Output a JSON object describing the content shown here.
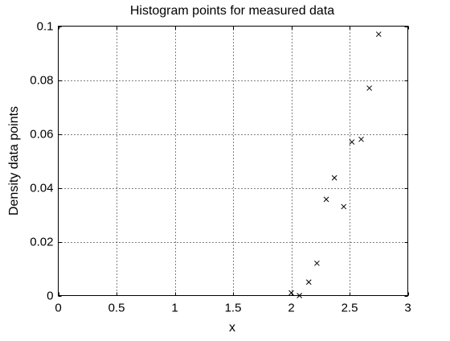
{
  "chart_data": {
    "type": "scatter",
    "title": "Histogram points for measured data",
    "xlabel": "x",
    "ylabel": "Density data points",
    "xlim": [
      0,
      3
    ],
    "ylim": [
      0,
      0.1
    ],
    "xticks": [
      "0",
      "0.5",
      "1",
      "1.5",
      "2",
      "2.5",
      "3"
    ],
    "yticks": [
      "0",
      "0.02",
      "0.04",
      "0.06",
      "0.08",
      "0.1"
    ],
    "grid": true,
    "marker": "x",
    "series": [
      {
        "x": [
          2.0,
          2.07,
          2.15,
          2.22,
          2.3,
          2.37,
          2.45,
          2.52,
          2.6,
          2.67,
          2.75
        ],
        "y": [
          0.001,
          0.0,
          0.005,
          0.012,
          0.0357,
          0.0437,
          0.033,
          0.057,
          0.058,
          0.077,
          0.097
        ]
      }
    ],
    "colors": {
      "marker": "#000000",
      "axes": "#000000",
      "grid": "#000000"
    }
  }
}
